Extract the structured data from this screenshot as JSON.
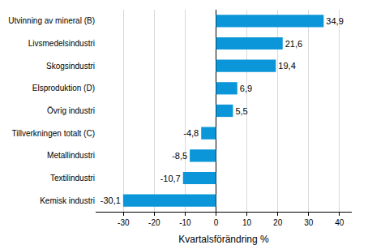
{
  "chart_data": {
    "type": "bar",
    "orientation": "horizontal",
    "x_label": "Kvartalsförändring %",
    "categories": [
      "Utvinning av mineral (B)",
      "Livsmedelsindustri",
      "Skogsindustri",
      "Elsproduktion (D)",
      "Övrig industri",
      "Tillverkningen totalt (C)",
      "Metallindustri",
      "Textilindustri",
      "Kemisk industri"
    ],
    "values": [
      34.9,
      21.6,
      19.4,
      6.9,
      5.5,
      -4.8,
      -8.5,
      -10.7,
      -30.1
    ],
    "value_labels": [
      "34,9",
      "21,6",
      "19,4",
      "6,9",
      "5,5",
      "-4,8",
      "-8,5",
      "-10,7",
      "-30,1"
    ],
    "data_labels": true,
    "color": "#0a96d8",
    "xlim": [
      -39,
      44
    ],
    "xticks": [
      -30,
      -20,
      -10,
      0,
      10,
      20,
      30,
      40
    ],
    "grid": true
  }
}
